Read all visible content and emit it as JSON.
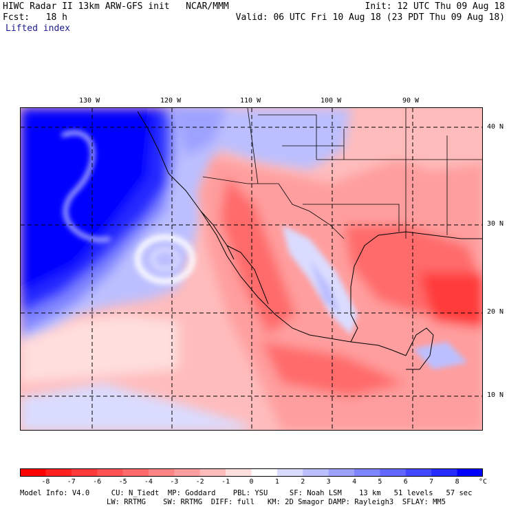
{
  "header": {
    "line1_left": "HIWC Radar II 13km ARW-GFS init   NCAR/MMM",
    "line1_right": "Init: 12 UTC Thu 09 Aug 18",
    "line2_left": "Fcst:   18 h",
    "line2_right": "Valid: 06 UTC Fri 10 Aug 18 (23 PDT Thu 09 Aug 18)",
    "field": "Lifted index"
  },
  "map": {
    "lon_labels": [
      "130 W",
      "120 W",
      "110 W",
      "100 W",
      "90 W"
    ],
    "lat_labels": [
      "40 N",
      "30 N",
      "20 N",
      "10 N"
    ]
  },
  "colorbar": {
    "labels": [
      "-8",
      "-7",
      "-6",
      "-5",
      "-4",
      "-3",
      "-2",
      "-1",
      "0",
      "1",
      "2",
      "3",
      "4",
      "5",
      "6",
      "7",
      "8"
    ],
    "unit": "°C",
    "colors": [
      "#ff0000",
      "#ff2020",
      "#ff3a3a",
      "#ff5252",
      "#ff6a6a",
      "#ff8484",
      "#ff9e9e",
      "#ffbcbc",
      "#ffdede",
      "#ffffff",
      "#dadcff",
      "#bcbfff",
      "#9ea2ff",
      "#7f84ff",
      "#6167ff",
      "#4349ff",
      "#252cff",
      "#0000ff"
    ]
  },
  "footer": {
    "line1": "Model Info: V4.0     CU: N_Tiedt  MP: Goddard    PBL: YSU     SF: Noah LSM    13 km   51 levels   57 sec",
    "line2": "LW: RRTMG    SW: RRTMG  DIFF: full   KM: 2D Smagor DAMP: Rayleigh3  SFLAY: MM5"
  }
}
